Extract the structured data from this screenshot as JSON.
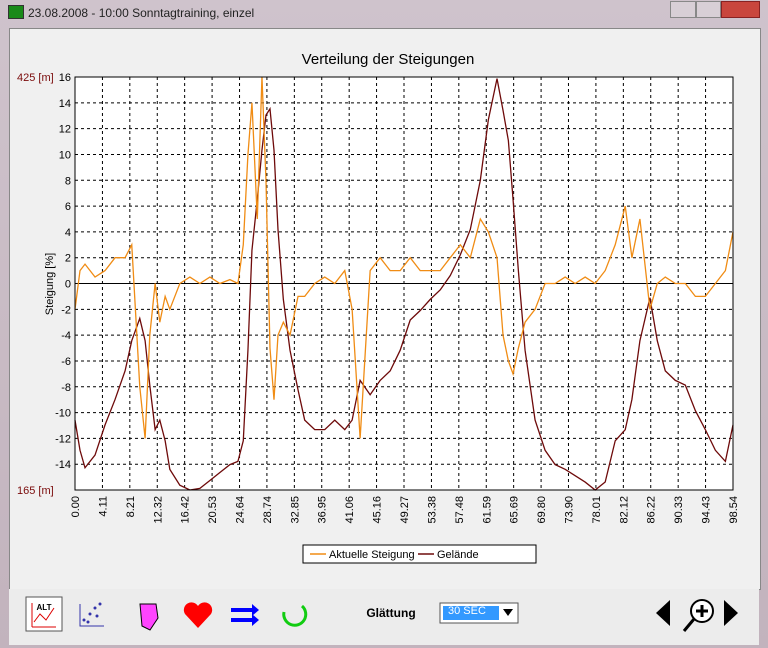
{
  "window": {
    "title": "23.08.2008 - 10:00  Sonntagtraining, einzel"
  },
  "chart_data": {
    "type": "line",
    "title": "Verteilung der Steigungen",
    "y_label": "Steigung [%]",
    "x": [
      0,
      0.75,
      1.5,
      3,
      4.5,
      6,
      7.5,
      8.5,
      9.7,
      10.5,
      11.2,
      12,
      12.7,
      13.5,
      14.2,
      15.7,
      17.2,
      18.7,
      20.2,
      21.7,
      23.2,
      24.4,
      25.2,
      25.9,
      26.5,
      27.3,
      28,
      28.6,
      29.2,
      29.8,
      30.4,
      31.2,
      32.2,
      33.4,
      34.4,
      35.9,
      37.4,
      38.9,
      40.4,
      41.5,
      42.7,
      44.2,
      45.7,
      47.2,
      48.7,
      50.2,
      51.7,
      53.2,
      54.7,
      56.2,
      57.7,
      59.2,
      60.7,
      61.9,
      63.2,
      64.1,
      64.9,
      65.6,
      66.4,
      67.4,
      68.9,
      70.4,
      71.9,
      73.4,
      74.9,
      76.4,
      77.9,
      79.4,
      80.9,
      82.4,
      83.4,
      84.6,
      86.1,
      87.2,
      88.4,
      89.9,
      91.4,
      92.9,
      94.4,
      95.9,
      97.4,
      98.54
    ],
    "series": [
      {
        "name": "Aktuelle  Steigung",
        "color": "#f08c14",
        "values": [
          -2,
          1,
          1.5,
          0.5,
          1,
          2,
          2,
          3,
          -8,
          -12,
          -4,
          0,
          -3,
          -1,
          -2,
          0,
          0.5,
          0,
          0.5,
          0,
          0.3,
          0,
          3,
          10,
          14,
          5,
          16,
          8,
          -5,
          -9,
          -4,
          -3,
          -4,
          -1,
          -1,
          0,
          0.5,
          0,
          1,
          -2,
          -12,
          1,
          2,
          1,
          1,
          2,
          1,
          1,
          1,
          2,
          3,
          2,
          5,
          4,
          2,
          -4,
          -6,
          -7,
          -5,
          -3,
          -2,
          0,
          0,
          0.5,
          0,
          0.5,
          0,
          1,
          3,
          6,
          2,
          5,
          -2,
          0,
          0.5,
          0,
          0,
          -1,
          -1,
          0,
          1,
          4
        ]
      },
      {
        "name": "Gelände",
        "color": "#6e0a0a",
        "axis": "y2",
        "values": [
          209,
          190,
          179,
          187,
          206,
          222,
          240,
          259,
          273,
          259,
          231,
          203,
          209,
          196,
          178,
          168,
          165,
          166,
          171,
          176,
          181,
          183,
          196,
          253,
          316,
          348,
          379,
          401,
          405,
          379,
          329,
          285,
          253,
          228,
          209,
          203,
          203,
          209,
          203,
          209,
          234,
          225,
          234,
          240,
          253,
          272,
          278,
          285,
          291,
          300,
          313,
          329,
          360,
          398,
          424,
          404,
          385,
          348,
          303,
          253,
          209,
          190,
          181,
          178,
          174,
          170,
          165,
          170,
          196,
          203,
          222,
          259,
          286,
          259,
          240,
          234,
          231,
          215,
          203,
          190,
          183,
          206
        ]
      }
    ],
    "xlim": [
      0,
      98.54
    ],
    "xticks": [
      {
        "value": 0,
        "label": "0.00"
      },
      4.11,
      8.21,
      12.32,
      16.42,
      20.53,
      24.64,
      28.74,
      32.85,
      36.95,
      41.06,
      45.16,
      49.27,
      53.38,
      57.48,
      61.59,
      65.69,
      {
        "value": 69.8,
        "label": "69.80"
      },
      {
        "value": 73.9,
        "label": "73.90"
      },
      78.01,
      82.12,
      86.22,
      90.33,
      94.43,
      98.54
    ],
    "ylim": [
      -16,
      16
    ],
    "yticks": [
      -14,
      -12,
      -10,
      -8,
      -6,
      -4,
      -2,
      0,
      2,
      4,
      6,
      8,
      10,
      12,
      14,
      16
    ],
    "y2lim": [
      165,
      425
    ],
    "y2ticks": [
      {
        "value": 165,
        "label": "165 [m]"
      },
      {
        "value": 425,
        "label": "425 [m]"
      }
    ],
    "grid": true
  },
  "toolbar": {
    "alt_icon": "ALT",
    "smoothing_label": "Glättung",
    "smoothing_value": "30 SEC"
  }
}
